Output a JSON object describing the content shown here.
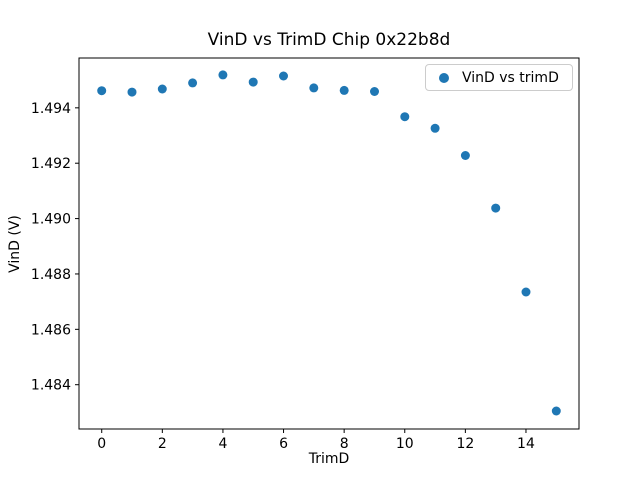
{
  "figure": {
    "title": "VinD vs TrimD Chip 0x22b8d",
    "xlabel": "TrimD",
    "ylabel": "VinD (V)",
    "legend_label": "VinD vs trimD",
    "background_color": "#ffffff",
    "marker_color": "#1f77b4",
    "axis_color": "#000000",
    "legend_border_color": "#cccccc"
  },
  "chart_data": {
    "type": "scatter",
    "title": "VinD vs TrimD Chip 0x22b8d",
    "xlabel": "TrimD",
    "ylabel": "VinD (V)",
    "grid": false,
    "legend_position": "upper right",
    "xlim": [
      -0.75,
      15.75
    ],
    "ylim": [
      1.4824,
      1.4958
    ],
    "xticks": [
      0,
      2,
      4,
      6,
      8,
      10,
      12,
      14
    ],
    "yticks": [
      1.484,
      1.486,
      1.488,
      1.49,
      1.492,
      1.494
    ],
    "ytick_decimals": 3,
    "series": [
      {
        "name": "VinD vs trimD",
        "marker_color": "#1f77b4",
        "x": [
          0,
          1,
          2,
          3,
          4,
          5,
          6,
          7,
          8,
          9,
          10,
          11,
          12,
          13,
          14,
          15
        ],
        "y": [
          1.49462,
          1.49457,
          1.49468,
          1.4949,
          1.49519,
          1.49493,
          1.49515,
          1.49472,
          1.49463,
          1.49459,
          1.49368,
          1.49326,
          1.49228,
          1.49038,
          1.48735,
          1.48305
        ]
      }
    ]
  }
}
